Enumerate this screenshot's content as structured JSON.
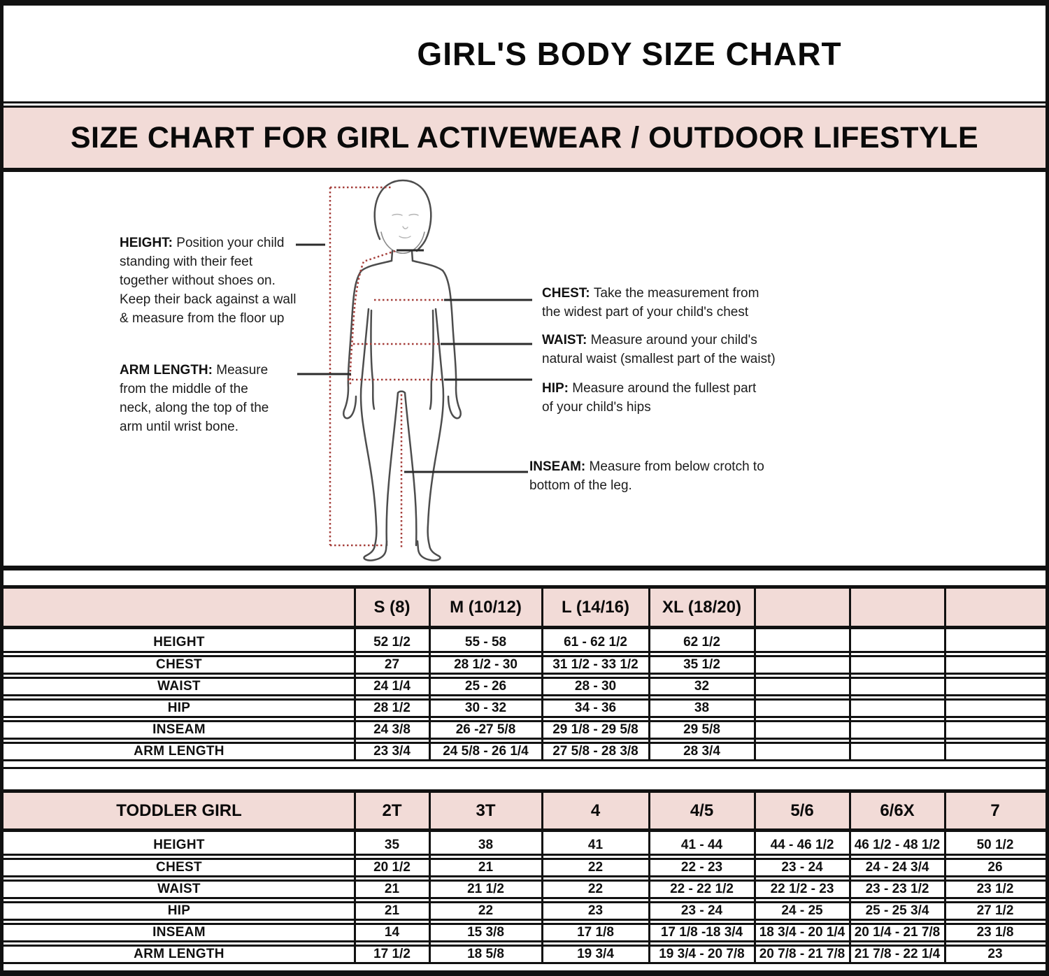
{
  "title": "GIRL'S BODY SIZE CHART",
  "banner": "SIZE CHART FOR GIRL ACTIVEWEAR / OUTDOOR LIFESTYLE",
  "colors": {
    "pink": "#f2dbd7",
    "line": "#111111",
    "measure_red": "#a53e3a",
    "figure_grey": "#4d4d4d"
  },
  "diagram": {
    "annotations": [
      {
        "id": "height",
        "label": "HEIGHT:",
        "lines": [
          "Position your child",
          "standing with their feet",
          "together without shoes on.",
          "Keep their back against a wall",
          "& measure from the floor up"
        ]
      },
      {
        "id": "arm",
        "label": "ARM LENGTH:",
        "lines": [
          "Measure",
          "from the middle of the",
          "neck, along the top of the",
          "arm until wrist bone."
        ]
      },
      {
        "id": "chest",
        "label": "CHEST:",
        "lines": [
          "Take the measurement from",
          "the widest part of your child's chest"
        ]
      },
      {
        "id": "waist",
        "label": "WAIST:",
        "lines": [
          "Measure around your child's",
          "natural waist (smallest part of the waist)"
        ]
      },
      {
        "id": "hip",
        "label": "HIP:",
        "lines": [
          "Measure around the fullest part",
          "of your child's hips"
        ]
      },
      {
        "id": "inseam",
        "label": "INSEAM:",
        "lines": [
          "Measure from below crotch to",
          "bottom of the leg."
        ]
      }
    ]
  },
  "chart_data": [
    {
      "type": "table",
      "title": "GIRL",
      "columns": [
        "",
        "S (8)",
        "M (10/12)",
        "L (14/16)",
        "XL (18/20)",
        "",
        "",
        ""
      ],
      "rows": [
        {
          "label": "HEIGHT",
          "values": [
            "52 1/2",
            "55 - 58",
            "61 - 62 1/2",
            "62 1/2",
            "",
            "",
            ""
          ]
        },
        {
          "label": "CHEST",
          "values": [
            "27",
            "28 1/2 - 30",
            "31 1/2 - 33 1/2",
            "35 1/2",
            "",
            "",
            ""
          ]
        },
        {
          "label": "WAIST",
          "values": [
            "24 1/4",
            "25 - 26",
            "28 - 30",
            "32",
            "",
            "",
            ""
          ]
        },
        {
          "label": "HIP",
          "values": [
            "28 1/2",
            "30 - 32",
            "34 - 36",
            "38",
            "",
            "",
            ""
          ]
        },
        {
          "label": "INSEAM",
          "values": [
            "24 3/8",
            "26 -27 5/8",
            "29 1/8 - 29 5/8",
            "29 5/8",
            "",
            "",
            ""
          ]
        },
        {
          "label": "ARM LENGTH",
          "values": [
            "23 3/4",
            "24 5/8 - 26 1/4",
            "27 5/8 - 28 3/8",
            "28 3/4",
            "",
            "",
            ""
          ]
        }
      ]
    },
    {
      "type": "table",
      "title": "TODDLER GIRL",
      "columns": [
        "TODDLER GIRL",
        "2T",
        "3T",
        "4",
        "4/5",
        "5/6",
        "6/6X",
        "7"
      ],
      "rows": [
        {
          "label": "HEIGHT",
          "values": [
            "35",
            "38",
            "41",
            "41 - 44",
            "44 - 46 1/2",
            "46 1/2 - 48 1/2",
            "50 1/2"
          ]
        },
        {
          "label": "CHEST",
          "values": [
            "20 1/2",
            "21",
            "22",
            "22 - 23",
            "23 - 24",
            "24 - 24 3/4",
            "26"
          ]
        },
        {
          "label": "WAIST",
          "values": [
            "21",
            "21 1/2",
            "22",
            "22 - 22 1/2",
            "22 1/2 - 23",
            "23 - 23 1/2",
            "23 1/2"
          ]
        },
        {
          "label": "HIP",
          "values": [
            "21",
            "22",
            "23",
            "23 - 24",
            "24 - 25",
            "25 - 25 3/4",
            "27 1/2"
          ]
        },
        {
          "label": "INSEAM",
          "values": [
            "14",
            "15 3/8",
            "17 1/8",
            "17 1/8 -18 3/4",
            "18 3/4 - 20 1/4",
            "20 1/4 - 21 7/8",
            "23 1/8"
          ]
        },
        {
          "label": "ARM LENGTH",
          "values": [
            "17 1/2",
            "18 5/8",
            "19 3/4",
            "19 3/4 - 20 7/8",
            "20 7/8 - 21 7/8",
            "21 7/8 - 22 1/4",
            "23"
          ]
        }
      ]
    }
  ]
}
